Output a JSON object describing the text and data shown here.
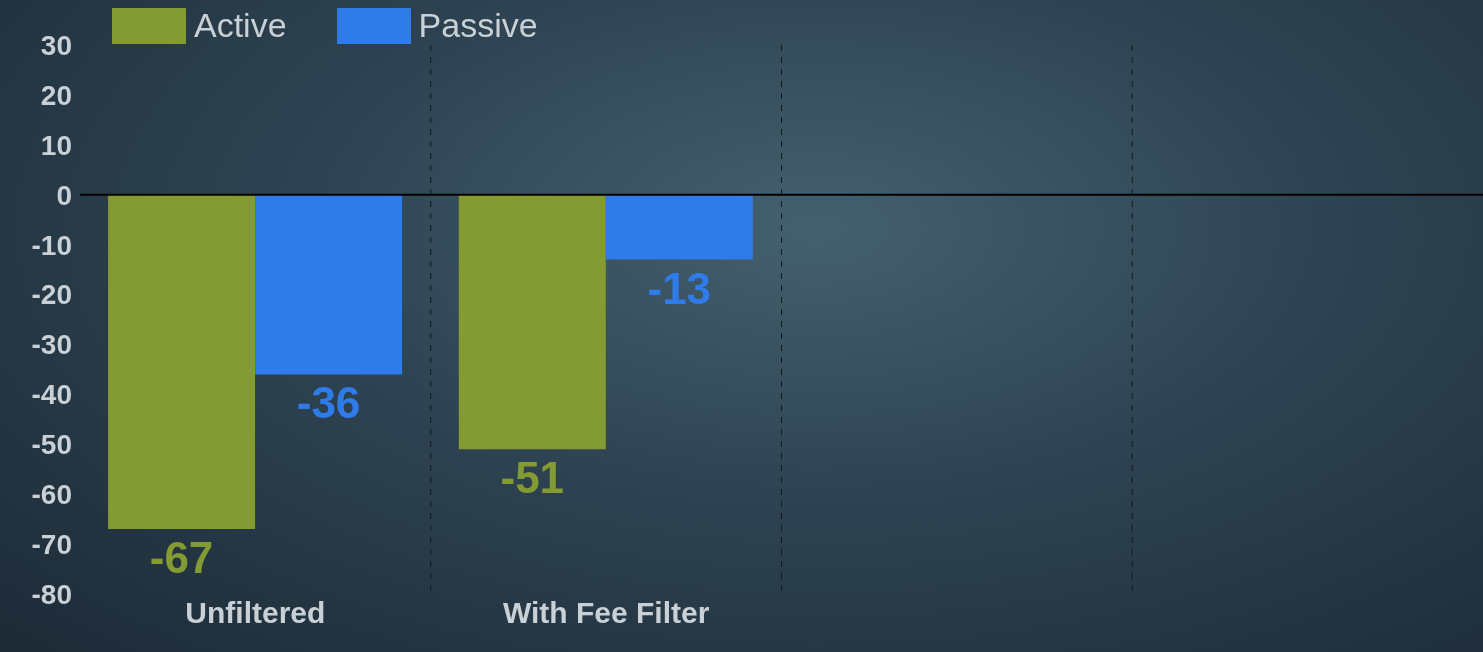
{
  "chart_data": {
    "type": "bar",
    "categories": [
      "Unfiltered",
      "With Fee Filter",
      null,
      null
    ],
    "series": [
      {
        "name": "Active",
        "color": "#849b33",
        "values": [
          -67,
          -51,
          null,
          null
        ]
      },
      {
        "name": "Passive",
        "color": "#2f7bea",
        "values": [
          -36,
          -13,
          null,
          null
        ]
      }
    ],
    "ylim": [
      -80,
      30
    ],
    "yticks": [
      -80,
      -70,
      -60,
      -50,
      -40,
      -30,
      -20,
      -10,
      0,
      10,
      20,
      30
    ],
    "ref_lines": [
      {
        "axis": "y",
        "value": 0,
        "color": "#000000"
      }
    ],
    "grid": "x",
    "legend": "top left",
    "data_labels": true
  }
}
